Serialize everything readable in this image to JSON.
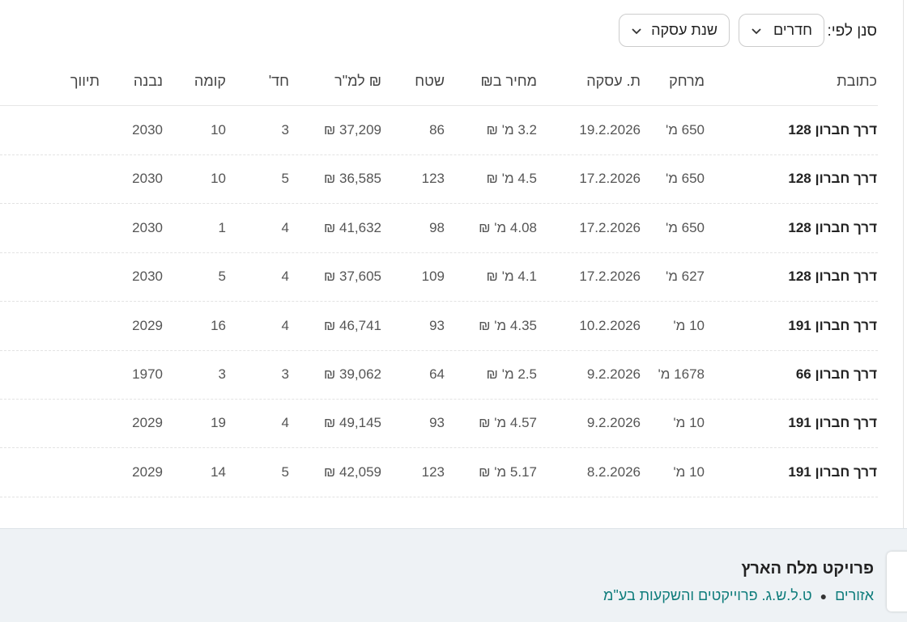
{
  "filter": {
    "label": "סנן לפי:",
    "dropdowns": [
      "חדרים",
      "שנת עסקה"
    ]
  },
  "table": {
    "headers": [
      "כתובת",
      "מרחק",
      "ת. עסקה",
      "מחיר ב₪",
      "שטח",
      "₪ למ\"ר",
      "חד'",
      "קומה",
      "נבנה",
      "תיווך"
    ],
    "rows": [
      [
        "דרך חברון 128",
        "650 מ'",
        "19.2.2026",
        "3.2 מ' ₪",
        86,
        "37,209 ₪",
        3,
        10,
        2030
      ],
      [
        "דרך חברון 128",
        "650 מ'",
        "17.2.2026",
        "4.5 מ' ₪",
        123,
        "36,585 ₪",
        5,
        10,
        2030
      ],
      [
        "דרך חברון 128",
        "650 מ'",
        "17.2.2026",
        "4.08 מ' ₪",
        98,
        "41,632 ₪",
        4,
        1,
        2030
      ],
      [
        "דרך חברון 128",
        "627 מ'",
        "17.2.2026",
        "4.1 מ' ₪",
        109,
        "37,605 ₪",
        4,
        5,
        2030
      ],
      [
        "דרך חברון 191",
        "10 מ'",
        "10.2.2026",
        "4.35 מ' ₪",
        93,
        "46,741 ₪",
        4,
        16,
        2029
      ],
      [
        "דרך חברון 66",
        "1678 מ'",
        "9.2.2026",
        "2.5 מ' ₪",
        64,
        "39,062 ₪",
        3,
        3,
        1970
      ],
      [
        "דרך חברון 191",
        "10 מ'",
        "9.2.2026",
        "4.57 מ' ₪",
        93,
        "49,145 ₪",
        4,
        19,
        2029
      ],
      [
        "דרך חברון 191",
        "10 מ'",
        "8.2.2026",
        "5.17 מ' ₪",
        123,
        "42,059 ₪",
        5,
        14,
        2029
      ]
    ]
  },
  "footer": {
    "title": "פרויקט מלח הארץ",
    "links": [
      "אזורים",
      "ט.ל.ש.ג. פרוייקטים והשקעות בע\"מ"
    ]
  }
}
